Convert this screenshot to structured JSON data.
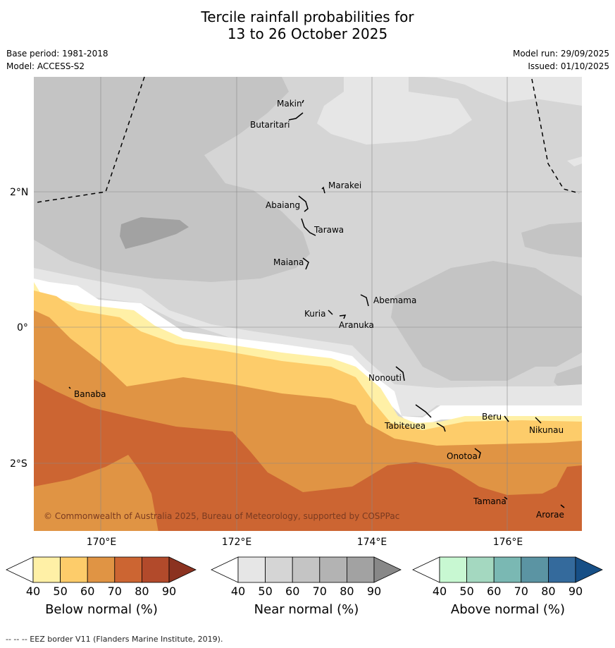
{
  "header": {
    "title_line1": "Tercile rainfall probabilities for",
    "title_line2": "13 to 26 October 2025",
    "base_period": "Base period: 1981-2018",
    "model": "Model: ACCESS-S2",
    "model_run": "Model run: 29/09/2025",
    "issued": "Issued: 01/10/2025"
  },
  "map": {
    "lat_labels": [
      "2°N",
      "0°",
      "2°S"
    ],
    "lon_labels": [
      "170°E",
      "172°E",
      "174°E",
      "176°E"
    ],
    "copyright": "© Commonwealth of Australia 2025, Bureau of Meteorology, supported by COSPPac",
    "islands": [
      "Makin",
      "Butaritari",
      "Marakei",
      "Abaiang",
      "Tarawa",
      "Maiana",
      "Abemama",
      "Kuria",
      "Aranuka",
      "Nonouti",
      "Banaba",
      "Tabiteuea",
      "Beru",
      "Nikunau",
      "Onotoa",
      "Tamana",
      "Arorae"
    ],
    "colors": {
      "below": [
        "#fff0a6",
        "#fdcc6a",
        "#e09444",
        "#cc6532",
        "#b24a2b",
        "#8b3220"
      ],
      "near": [
        "#e6e6e6",
        "#d5d5d5",
        "#c4c4c4",
        "#b3b3b3",
        "#a2a2a2",
        "#888888"
      ],
      "above": [
        "#c8f8d2",
        "#a4d8c0",
        "#7ab8b3",
        "#5b94a3",
        "#346a9c",
        "#174f86"
      ]
    }
  },
  "colorbars": {
    "ticks": [
      "40",
      "50",
      "60",
      "70",
      "80",
      "90"
    ],
    "below_label": "Below normal (%)",
    "near_label": "Near normal (%)",
    "above_label": "Above normal (%)"
  },
  "footnote": "-- -- -- EEZ border V11 (Flanders Marine Institute, 2019)."
}
